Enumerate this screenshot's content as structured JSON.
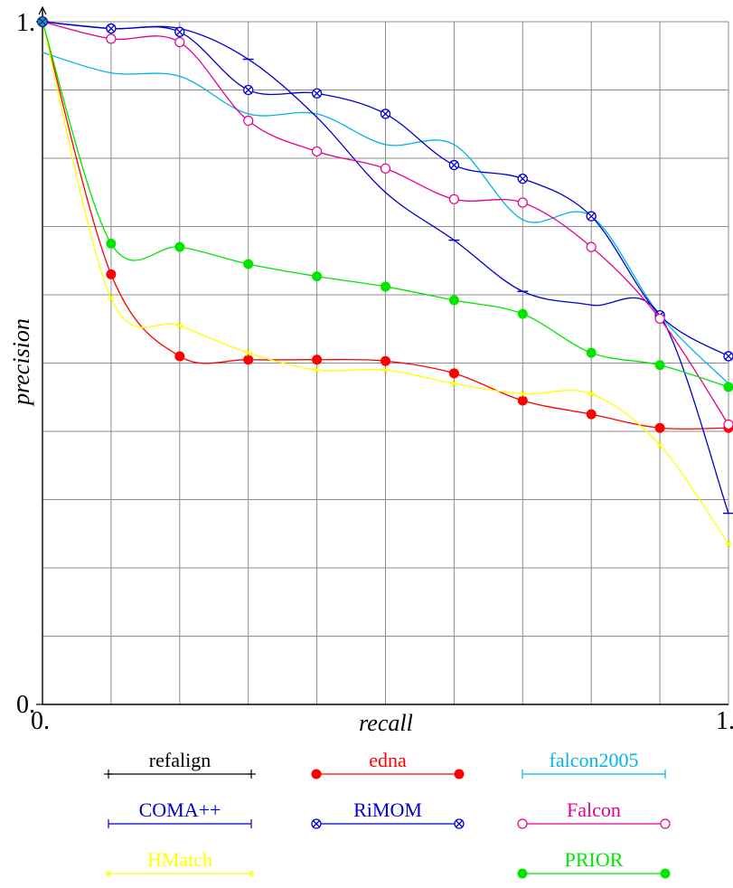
{
  "chart_data": {
    "type": "line",
    "xlabel": "recall",
    "ylabel": "precision",
    "xlim": [
      0,
      1
    ],
    "ylim": [
      0,
      1
    ],
    "x_tick_labels": [
      "0.",
      "1."
    ],
    "y_tick_labels": [
      "0.",
      "1."
    ],
    "grid": true,
    "legend_position": "bottom",
    "x": [
      0,
      0.1,
      0.2,
      0.3,
      0.4,
      0.5,
      0.6,
      0.7,
      0.8,
      0.9,
      1.0
    ],
    "series": [
      {
        "name": "refalign",
        "color": "#000000",
        "marker": "plus",
        "values": [
          1,
          1,
          1,
          1,
          1,
          1,
          1,
          1,
          1,
          1,
          1
        ]
      },
      {
        "name": "edna",
        "color": "#ff0000",
        "marker": "dot",
        "values": [
          1.0,
          0.63,
          0.51,
          0.505,
          0.505,
          0.503,
          0.485,
          0.445,
          0.425,
          0.405,
          0.405
        ]
      },
      {
        "name": "falcon2005",
        "color": "#00b4e6",
        "marker": "bar",
        "values": [
          0.955,
          0.925,
          0.92,
          0.865,
          0.865,
          0.82,
          0.82,
          0.71,
          0.715,
          0.57,
          0.47
        ]
      },
      {
        "name": "COMA++",
        "color": "#0000d0",
        "marker": "bar",
        "values": [
          1.0,
          0.99,
          0.99,
          0.945,
          0.86,
          0.75,
          0.68,
          0.605,
          0.585,
          0.57,
          0.28
        ]
      },
      {
        "name": "RiMOM",
        "color": "#0000d0",
        "marker": "otimes",
        "values": [
          1.0,
          0.99,
          0.985,
          0.9,
          0.895,
          0.865,
          0.79,
          0.77,
          0.715,
          0.57,
          0.51
        ]
      },
      {
        "name": "Falcon",
        "color": "#e6008c",
        "marker": "circle",
        "values": [
          1.0,
          0.975,
          0.97,
          0.855,
          0.81,
          0.785,
          0.74,
          0.735,
          0.67,
          0.565,
          0.41
        ]
      },
      {
        "name": "HMatch",
        "color": "#ffff00",
        "marker": "star",
        "values": [
          1.0,
          0.595,
          0.555,
          0.515,
          0.49,
          0.49,
          0.47,
          0.455,
          0.455,
          0.38,
          0.235
        ]
      },
      {
        "name": "PRIOR",
        "color": "#00e600",
        "marker": "dot",
        "values": [
          1.0,
          0.675,
          0.67,
          0.645,
          0.627,
          0.612,
          0.592,
          0.572,
          0.515,
          0.497,
          0.465
        ]
      }
    ]
  }
}
